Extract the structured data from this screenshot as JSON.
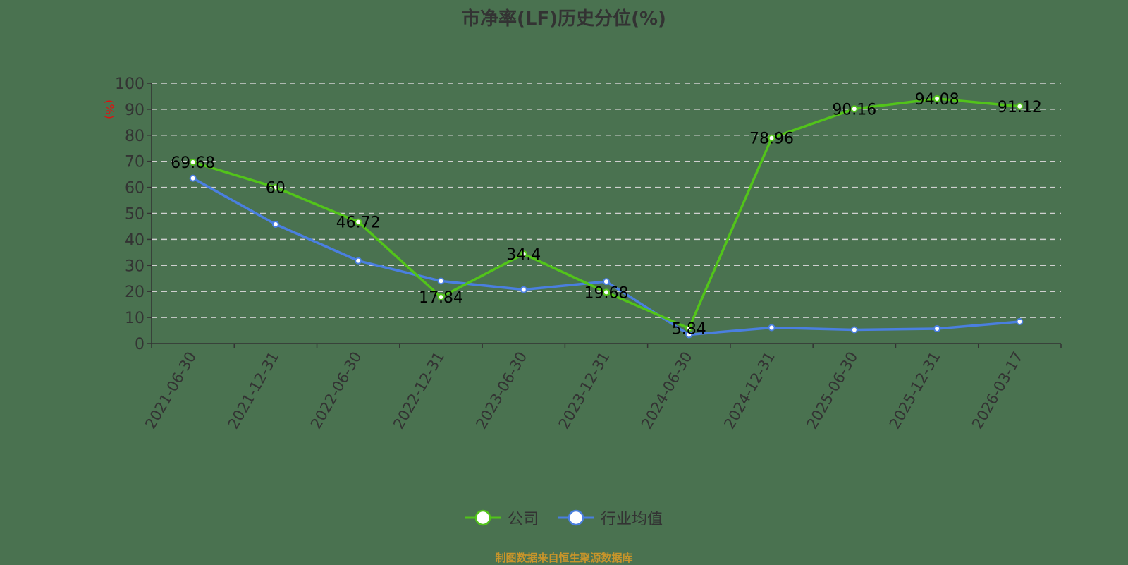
{
  "chart_data": {
    "type": "line",
    "title": "市净率(LF)历史分位(%)",
    "xlabel": "",
    "ylabel": "(%)",
    "ylim": [
      0,
      100
    ],
    "yticks": [
      0,
      10,
      20,
      30,
      40,
      50,
      60,
      70,
      80,
      90,
      100
    ],
    "grid": "horizontal dashed",
    "legend_position": "bottom",
    "categories": [
      "2021-06-30",
      "2021-12-31",
      "2022-06-30",
      "2022-12-31",
      "2023-06-30",
      "2023-12-31",
      "2024-06-30",
      "2024-12-31",
      "2025-06-30",
      "2025-12-31",
      "2026-03-17"
    ],
    "series": [
      {
        "name": "公司",
        "color": "#52c41a",
        "values": [
          69.68,
          60,
          46.72,
          17.84,
          34.4,
          19.68,
          5.84,
          78.96,
          90.16,
          94.08,
          91.12
        ],
        "labels_shown": true
      },
      {
        "name": "行业均值",
        "color": "#4a7fe0",
        "values": [
          63.5,
          45.8,
          31.8,
          24.0,
          20.7,
          23.8,
          3.4,
          6.1,
          5.3,
          5.7,
          8.4
        ],
        "labels_shown": false
      }
    ]
  },
  "source_note": "制图数据来自恒生聚源数据库"
}
